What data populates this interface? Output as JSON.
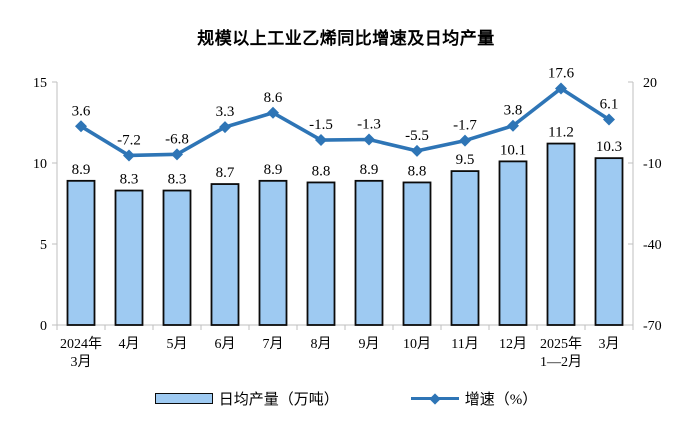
{
  "title": "规模以上工业乙烯同比增速及日均产量",
  "colors": {
    "bar_fill": "#9ECAF2",
    "bar_border": "#0b0b0b",
    "line": "#2E75B6",
    "axis": "#BFBFBF",
    "text": "#000000"
  },
  "chart_data": {
    "type": "bar+line",
    "title": "规模以上工业乙烯同比增速及日均产量",
    "categories": [
      "2024年\n3月",
      "4月",
      "5月",
      "6月",
      "7月",
      "8月",
      "9月",
      "10月",
      "11月",
      "12月",
      "2025年\n1—2月",
      "3月"
    ],
    "series": [
      {
        "name": "日均产量（万吨）",
        "type": "bar",
        "axis": "left",
        "values": [
          8.9,
          8.3,
          8.3,
          8.7,
          8.9,
          8.8,
          8.9,
          8.8,
          9.5,
          10.1,
          11.2,
          10.3
        ]
      },
      {
        "name": "增速（%）",
        "type": "line",
        "axis": "right",
        "values": [
          3.6,
          -7.2,
          -6.8,
          3.3,
          8.6,
          -1.5,
          -1.3,
          -5.5,
          -1.7,
          3.8,
          17.6,
          6.1
        ]
      }
    ],
    "left_axis": {
      "min": 0,
      "max": 15,
      "ticks": [
        15,
        10,
        5,
        0
      ]
    },
    "right_axis": {
      "min": -70,
      "max": 20,
      "ticks": [
        20,
        -10,
        -40,
        -70
      ]
    },
    "grid": false,
    "data_labels": true,
    "legend_position": "bottom"
  }
}
